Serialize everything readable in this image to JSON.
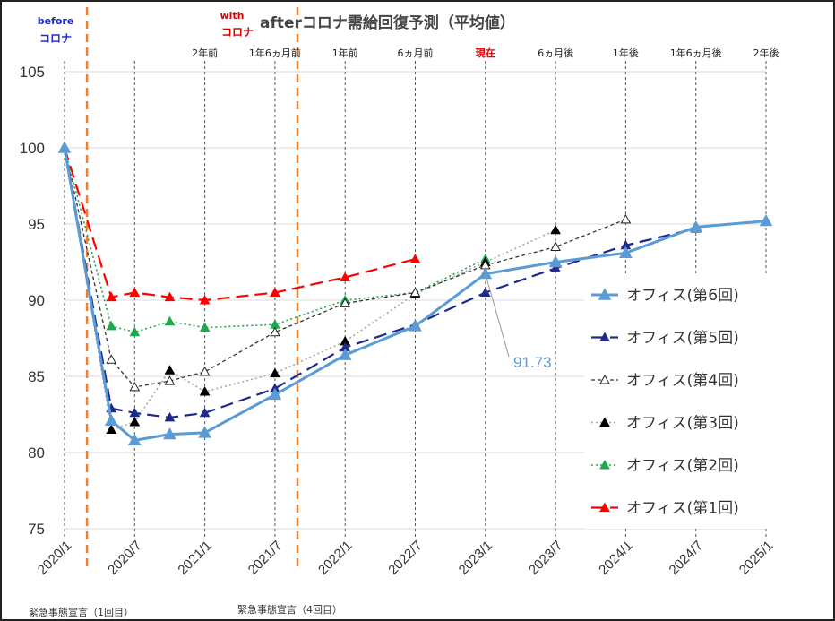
{
  "chart_data": {
    "type": "line",
    "title": "afterコロナ需給回復予測（平均値）",
    "before_label": [
      "before",
      "コロナ"
    ],
    "with_label": [
      "with",
      "コロナ"
    ],
    "x": [
      "2020/1",
      "2020/7",
      "2021/1",
      "2021/7",
      "2022/1",
      "2022/7",
      "2023/1",
      "2023/7",
      "2024/1",
      "2024/7",
      "2025/1"
    ],
    "top_labels": [
      {
        "at": "2020/7",
        "text": ""
      },
      {
        "at": "2021/1",
        "text": "2年前"
      },
      {
        "at": "2021/7",
        "text": "1年6ヵ月前"
      },
      {
        "at": "2022/1",
        "text": "1年前"
      },
      {
        "at": "2022/7",
        "text": "6ヵ月前"
      },
      {
        "at": "2023/1",
        "text": "現在"
      },
      {
        "at": "2023/7",
        "text": "6ヵ月後"
      },
      {
        "at": "2024/1",
        "text": "1年後"
      },
      {
        "at": "2024/7",
        "text": "1年6ヵ月後"
      },
      {
        "at": "2025/1",
        "text": "2年後"
      }
    ],
    "ylim": [
      75,
      105
    ],
    "yticks": [
      75,
      80,
      85,
      90,
      95,
      100,
      105
    ],
    "covid_lines": [
      "2020/3",
      "2021/9"
    ],
    "annotation": {
      "text": "91.73",
      "series": "オフィス(第6回)",
      "point_x": "2023/1",
      "point_y": 91.73
    },
    "series": [
      {
        "name": "オフィス(第6回)",
        "color": "#5b9bd5",
        "style": "solid",
        "marker": "triangle-filled",
        "points": [
          [
            "2020/1",
            100
          ],
          [
            "2020/5",
            82.1
          ],
          [
            "2020/7",
            80.8
          ],
          [
            "2020/10",
            81.2
          ],
          [
            "2021/1",
            81.3
          ],
          [
            "2021/7",
            83.8
          ],
          [
            "2022/1",
            86.4
          ],
          [
            "2022/7",
            88.3
          ],
          [
            "2023/1",
            91.73
          ],
          [
            "2023/7",
            92.5
          ],
          [
            "2024/1",
            93.1
          ],
          [
            "2024/7",
            94.8
          ],
          [
            "2025/1",
            95.2
          ]
        ]
      },
      {
        "name": "オフィス(第5回)",
        "color": "#1f2a8c",
        "style": "longdash",
        "marker": "triangle-filled",
        "points": [
          [
            "2020/1",
            100
          ],
          [
            "2020/5",
            82.9
          ],
          [
            "2020/7",
            82.6
          ],
          [
            "2020/10",
            82.3
          ],
          [
            "2021/1",
            82.6
          ],
          [
            "2021/7",
            84.2
          ],
          [
            "2022/1",
            86.9
          ],
          [
            "2022/7",
            88.4
          ],
          [
            "2023/1",
            90.5
          ],
          [
            "2023/7",
            92.1
          ],
          [
            "2024/1",
            93.6
          ],
          [
            "2024/7",
            94.7
          ]
        ]
      },
      {
        "name": "オフィス(第4回)",
        "color": "#333333",
        "style": "shortdash",
        "marker": "triangle-open",
        "points": [
          [
            "2020/1",
            100
          ],
          [
            "2020/5",
            86.1
          ],
          [
            "2020/7",
            84.3
          ],
          [
            "2020/10",
            84.7
          ],
          [
            "2021/1",
            85.3
          ],
          [
            "2021/7",
            87.9
          ],
          [
            "2022/1",
            89.8
          ],
          [
            "2022/7",
            90.5
          ],
          [
            "2023/1",
            92.3
          ],
          [
            "2023/7",
            93.5
          ],
          [
            "2024/1",
            95.3
          ]
        ]
      },
      {
        "name": "オフィス(第3回)",
        "color": "#a6a6a6",
        "style": "dot",
        "marker": "triangle-black",
        "points": [
          [
            "2020/1",
            100
          ],
          [
            "2020/5",
            81.5
          ],
          [
            "2020/7",
            82.0
          ],
          [
            "2020/10",
            85.4
          ],
          [
            "2021/1",
            84.0
          ],
          [
            "2021/7",
            85.2
          ],
          [
            "2022/1",
            87.3
          ],
          [
            "2022/7",
            90.4
          ],
          [
            "2023/1",
            92.5
          ],
          [
            "2023/7",
            94.6
          ]
        ]
      },
      {
        "name": "オフィス(第2回)",
        "color": "#1ea84c",
        "style": "dot",
        "marker": "triangle-filled",
        "points": [
          [
            "2020/1",
            100
          ],
          [
            "2020/5",
            88.3
          ],
          [
            "2020/7",
            87.9
          ],
          [
            "2020/10",
            88.6
          ],
          [
            "2021/1",
            88.2
          ],
          [
            "2021/7",
            88.4
          ],
          [
            "2022/1",
            90.0
          ],
          [
            "2022/7",
            90.5
          ],
          [
            "2023/1",
            92.7
          ]
        ]
      },
      {
        "name": "オフィス(第1回)",
        "color": "#ff0000",
        "style": "longdash",
        "marker": "triangle-filled",
        "points": [
          [
            "2020/1",
            100
          ],
          [
            "2020/5",
            90.2
          ],
          [
            "2020/7",
            90.5
          ],
          [
            "2020/10",
            90.2
          ],
          [
            "2021/1",
            90.0
          ],
          [
            "2021/7",
            90.5
          ],
          [
            "2022/1",
            91.5
          ],
          [
            "2022/7",
            92.7
          ]
        ]
      }
    ],
    "footnotes": [
      {
        "at": "2020/1",
        "text": "緊急事態宣言（1回目）"
      },
      {
        "at": "2021/4",
        "text": "緊急事態宣言（4回目）"
      }
    ]
  }
}
